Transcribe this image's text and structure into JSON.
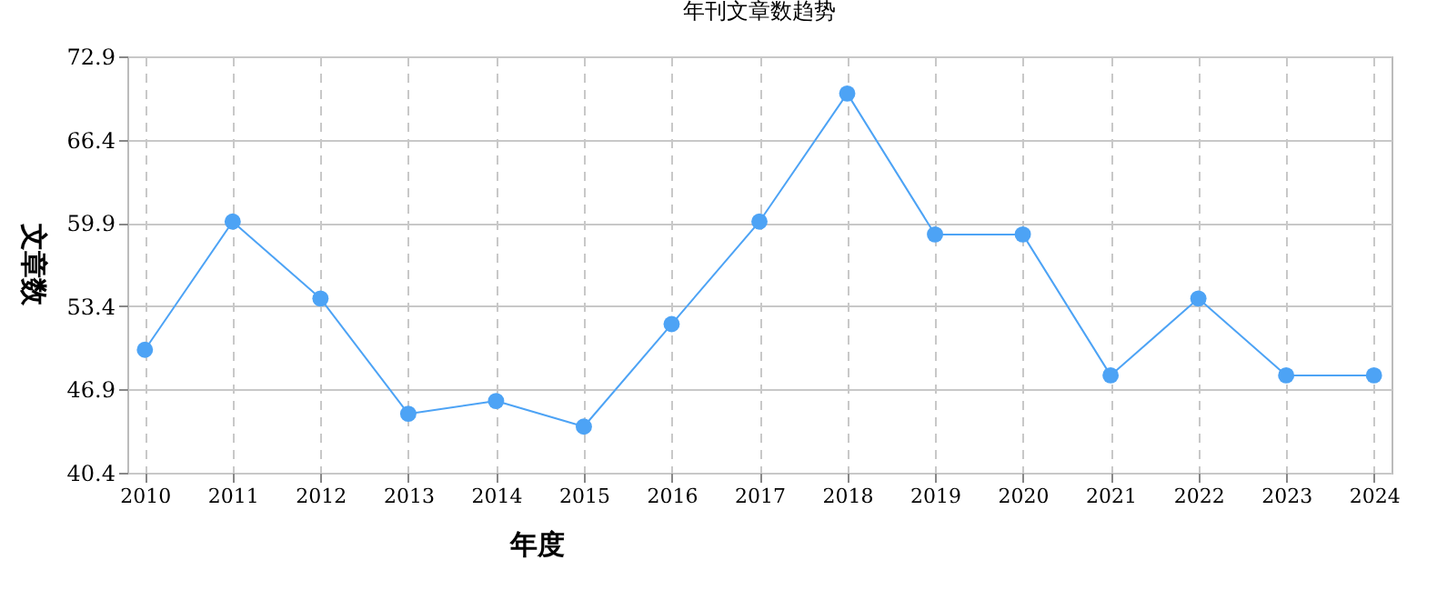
{
  "chart_data": {
    "type": "line",
    "title": "年刊文章数趋势",
    "xlabel": "年度",
    "ylabel": "文章数",
    "categories": [
      "2010",
      "2011",
      "2012",
      "2013",
      "2014",
      "2015",
      "2016",
      "2017",
      "2018",
      "2019",
      "2020",
      "2021",
      "2022",
      "2023",
      "2024"
    ],
    "series": [
      {
        "color": "#4da3f5",
        "values": [
          50,
          60,
          54,
          45,
          46,
          44,
          52,
          60,
          70,
          59,
          59,
          48,
          54,
          48,
          48
        ]
      }
    ],
    "ylim": [
      40.4,
      72.9
    ],
    "yticks": [
      40.4,
      46.9,
      53.4,
      59.9,
      66.4,
      72.9
    ],
    "grid": true,
    "marker": "circle",
    "line_style": "solid"
  }
}
